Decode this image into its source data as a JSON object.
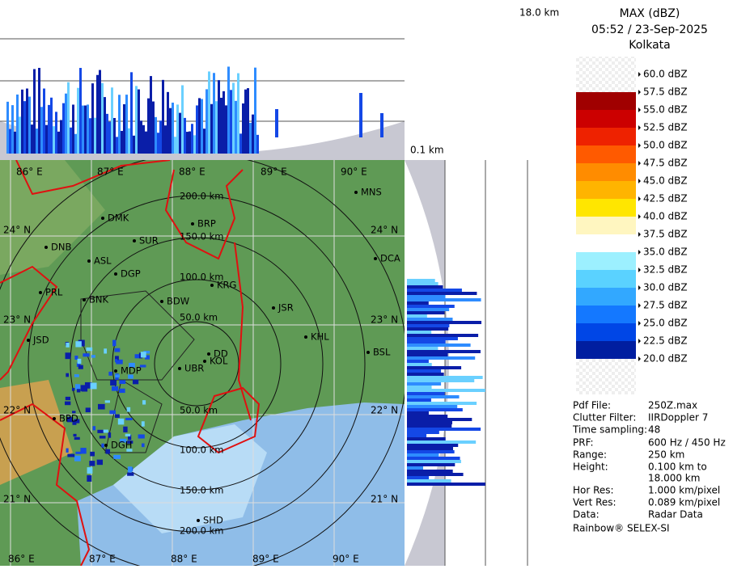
{
  "header": {
    "title": "MAX (dBZ)",
    "time": "05:52 / 23-Sep-2025",
    "location": "Kolkata"
  },
  "height_labels": {
    "top": "18.0 km",
    "bottom": "0.1 km"
  },
  "legend": {
    "labels": [
      "60.0 dBZ",
      "57.5 dBZ",
      "55.0 dBZ",
      "52.5 dBZ",
      "50.0 dBZ",
      "47.5 dBZ",
      "45.0 dBZ",
      "42.5 dBZ",
      "40.0 dBZ",
      "37.5 dBZ",
      "35.0 dBZ",
      "32.5 dBZ",
      "30.0 dBZ",
      "27.5 dBZ",
      "25.0 dBZ",
      "22.5 dBZ",
      "20.0 dBZ"
    ],
    "colors": [
      "#a00000",
      "#cc0000",
      "#ee2200",
      "#ff5a00",
      "#ff8c00",
      "#ffb400",
      "#ffe600",
      "#fff6c0",
      "#ffffff",
      "#9cf0ff",
      "#5ad2ff",
      "#32a8ff",
      "#1478ff",
      "#0046e6",
      "#001ea0"
    ]
  },
  "map": {
    "lon_labels": [
      "86° E",
      "87° E",
      "88° E",
      "89° E",
      "90° E"
    ],
    "lat_labels": [
      "24° N",
      "23° N",
      "22° N",
      "21° N"
    ],
    "ring_labels": [
      "200.0 km",
      "150.0 km",
      "100.0 km",
      "50.0 km",
      "50.0 km",
      "100.0 km",
      "150.0 km",
      "200.0 km"
    ],
    "cities": [
      "MNS",
      "DMK",
      "BRP",
      "SUR",
      "DNB",
      "ASL",
      "DCA",
      "DGP",
      "KRG",
      "PRL",
      "BNK",
      "BDW",
      "JSR",
      "KHL",
      "JSD",
      "BSL",
      "DD",
      "KOL",
      "MDP",
      "UBR",
      "BPD",
      "DGH",
      "SHD"
    ]
  },
  "info": {
    "rows": [
      [
        "Pdf File:",
        "250Z.max"
      ],
      [
        "Clutter Filter:",
        "IIRDoppler 7"
      ],
      [
        "Time sampling:",
        "48"
      ],
      [
        "PRF:",
        "600 Hz / 450 Hz"
      ],
      [
        "Range:",
        "250 km"
      ],
      [
        "Height:",
        "0.100 km to"
      ],
      [
        "",
        "18.000 km"
      ],
      [
        "Hor Res:",
        "1.000 km/pixel"
      ],
      [
        "Vert Res:",
        "0.089 km/pixel"
      ],
      [
        "Data:",
        "Radar Data"
      ]
    ],
    "footer": "Rainbow® SELEX-SI"
  }
}
